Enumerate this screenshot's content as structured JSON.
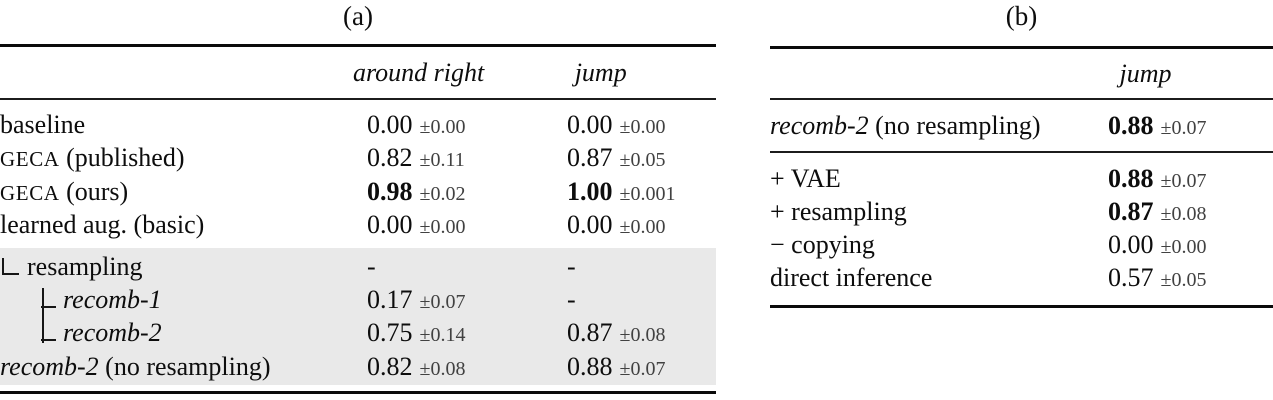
{
  "table_a": {
    "caption": "(a)",
    "headers": {
      "col1": "around right",
      "col2": "jump"
    },
    "rows": [
      {
        "label": "baseline",
        "c1": "0.00",
        "c1pm": "±0.00",
        "c2": "0.00",
        "c2pm": "±0.00"
      },
      {
        "label_sc": "GECA",
        "label_rest": " (published)",
        "c1": "0.82",
        "c1pm": "±0.11",
        "c2": "0.87",
        "c2pm": "±0.05"
      },
      {
        "label_sc": "GECA",
        "label_rest": " (ours)",
        "c1": "0.98",
        "c1pm": "±0.02",
        "c2": "1.00",
        "c2pm": "±0.001"
      },
      {
        "label": "learned aug. (basic)",
        "c1": "0.00",
        "c1pm": "±0.00",
        "c2": "0.00",
        "c2pm": "±0.00"
      },
      {
        "label": "resampling",
        "c1": "-",
        "c2": "-"
      },
      {
        "label_it": "recomb-1",
        "c1": "0.17",
        "c1pm": "±0.07",
        "c2": "-"
      },
      {
        "label_it": "recomb-2",
        "c1": "0.75",
        "c1pm": "±0.14",
        "c2": "0.87",
        "c2pm": "±0.08"
      },
      {
        "label_it": "recomb-2",
        "label_rest": " (no resampling)",
        "c1": "0.82",
        "c1pm": "±0.08",
        "c2": "0.88",
        "c2pm": "±0.07"
      }
    ],
    "shading_color": "#e9e9e9"
  },
  "table_b": {
    "caption": "(b)",
    "headers": {
      "col1": "jump"
    },
    "rows": [
      {
        "label_it": "recomb-2",
        "label_rest": " (no resampling)",
        "v": "0.88",
        "pm": "±0.07"
      },
      {
        "label": "+ VAE",
        "v": "0.88",
        "pm": "±0.07"
      },
      {
        "label": "+ resampling",
        "v": "0.87",
        "pm": "±0.08"
      },
      {
        "label": "− copying",
        "v": "0.00",
        "pm": "±0.00"
      },
      {
        "label": "direct inference",
        "v": "0.57",
        "pm": "±0.05"
      }
    ]
  }
}
